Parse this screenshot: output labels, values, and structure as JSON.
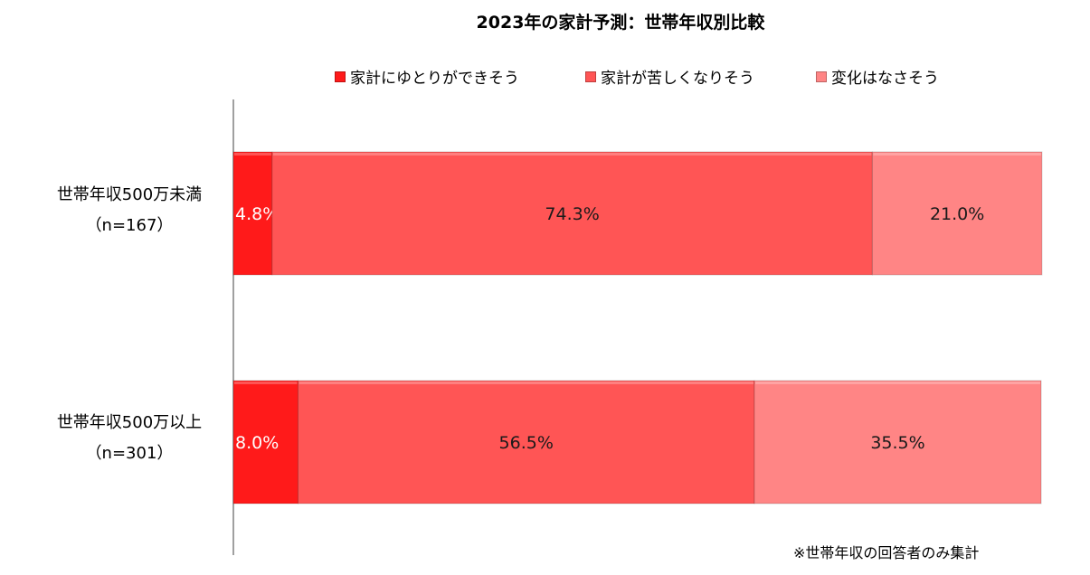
{
  "chart_data": {
    "type": "bar",
    "orientation": "horizontal",
    "stacked": true,
    "title": "2023年の家計予測：世帯年収別比較",
    "categories": [
      {
        "line1": "世帯年収500万未満",
        "line2": "（n=167）"
      },
      {
        "line1": "世帯年収500万以上",
        "line2": "（n=301）"
      }
    ],
    "series": [
      {
        "name": "家計にゆとりができそう",
        "color": "#ff1a1a",
        "values": [
          4.8,
          8.0
        ],
        "labels": [
          "4.8%",
          "8.0%"
        ]
      },
      {
        "name": "家計が苦しくなりそう",
        "color": "#ff5555",
        "values": [
          74.3,
          56.5
        ],
        "labels": [
          "74.3%",
          "56.5%"
        ]
      },
      {
        "name": "変化はなさそう",
        "color": "#ff8585",
        "values": [
          21.0,
          35.5
        ],
        "labels": [
          "21.0%",
          "35.5%"
        ]
      }
    ],
    "xlim": [
      0,
      100
    ],
    "legend_position": "top",
    "grid": false
  },
  "footnote": "※世帯年収の回答者のみ集計"
}
